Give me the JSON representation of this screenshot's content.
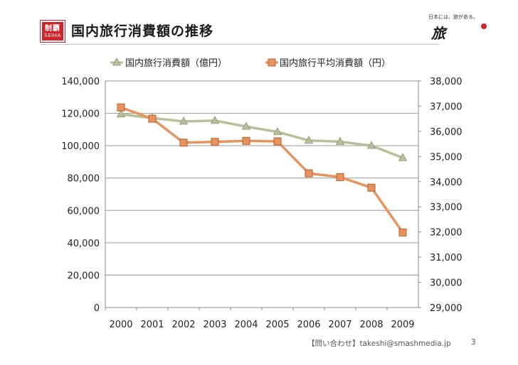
{
  "header": {
    "logo_text": "制覇",
    "logo_sub": "SEIHA",
    "title": "国内旅行消費額の推移",
    "brand_tagline": "日本には、旅がある。",
    "brand_mark": "旅",
    "brand_color": "#d2232a"
  },
  "chart_data": {
    "type": "line",
    "categories": [
      "2000",
      "2001",
      "2002",
      "2003",
      "2004",
      "2005",
      "2006",
      "2007",
      "2008",
      "2009"
    ],
    "series": [
      {
        "name": "国内旅行消費額（億円）",
        "axis": "left",
        "color": "#b9bf98",
        "marker": "triangle",
        "values": [
          119500,
          117000,
          115000,
          115500,
          111800,
          108500,
          103200,
          102500,
          100000,
          92500
        ]
      },
      {
        "name": "国内旅行平均消費額（円）",
        "axis": "right",
        "color": "#e6935f",
        "marker": "square",
        "values": [
          36950,
          36500,
          35550,
          35580,
          35620,
          35600,
          34330,
          34180,
          33760,
          31980
        ]
      }
    ],
    "y_left": {
      "min": 0,
      "max": 140000,
      "step": 20000,
      "ticks": [
        "0",
        "20,000",
        "40,000",
        "60,000",
        "80,000",
        "100,000",
        "120,000",
        "140,000"
      ]
    },
    "y_right": {
      "min": 29000,
      "max": 38000,
      "step": 1000,
      "ticks": [
        "29,000",
        "30,000",
        "31,000",
        "32,000",
        "33,000",
        "34,000",
        "35,000",
        "36,000",
        "37,000",
        "38,000"
      ]
    },
    "grid": "horizontal",
    "legend_position": "top"
  },
  "footer": {
    "contact": "【問い合わせ】takeshi@smashmedia.jp",
    "page": "3"
  }
}
